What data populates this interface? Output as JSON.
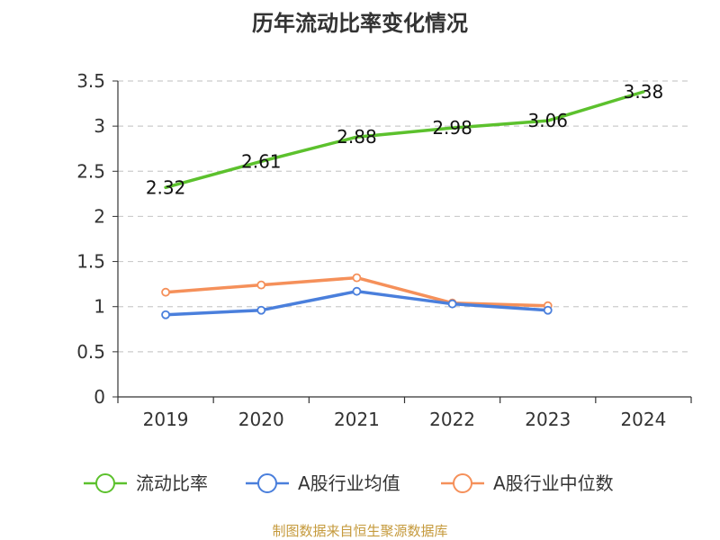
{
  "chart_data": {
    "type": "line",
    "title": "历年流动比率变化情况",
    "xlabel": "",
    "ylabel": "",
    "categories": [
      "2019",
      "2020",
      "2021",
      "2022",
      "2023",
      "2024"
    ],
    "ylim": [
      0,
      3.5
    ],
    "yticks": [
      "0",
      "0.5",
      "1",
      "1.5",
      "2",
      "2.5",
      "3",
      "3.5"
    ],
    "grid": true,
    "legend_position": "bottom",
    "series": [
      {
        "name": "流动比率",
        "color": "#5cc12d",
        "values": [
          2.32,
          2.61,
          2.88,
          2.98,
          3.06,
          3.38
        ],
        "labels": [
          "2.32",
          "2.61",
          "2.88",
          "2.98",
          "3.06",
          "3.38"
        ],
        "show_labels": true,
        "markers": false
      },
      {
        "name": "A股行业均值",
        "color": "#4a7fdc",
        "values": [
          0.91,
          0.96,
          1.17,
          1.03,
          0.96,
          null
        ],
        "show_labels": false,
        "markers": true
      },
      {
        "name": "A股行业中位数",
        "color": "#f5905a",
        "values": [
          1.16,
          1.24,
          1.32,
          1.04,
          1.01,
          null
        ],
        "show_labels": false,
        "markers": true
      }
    ]
  },
  "source": {
    "text": "制图数据来自恒生聚源数据库",
    "color": "#c59a3c"
  }
}
